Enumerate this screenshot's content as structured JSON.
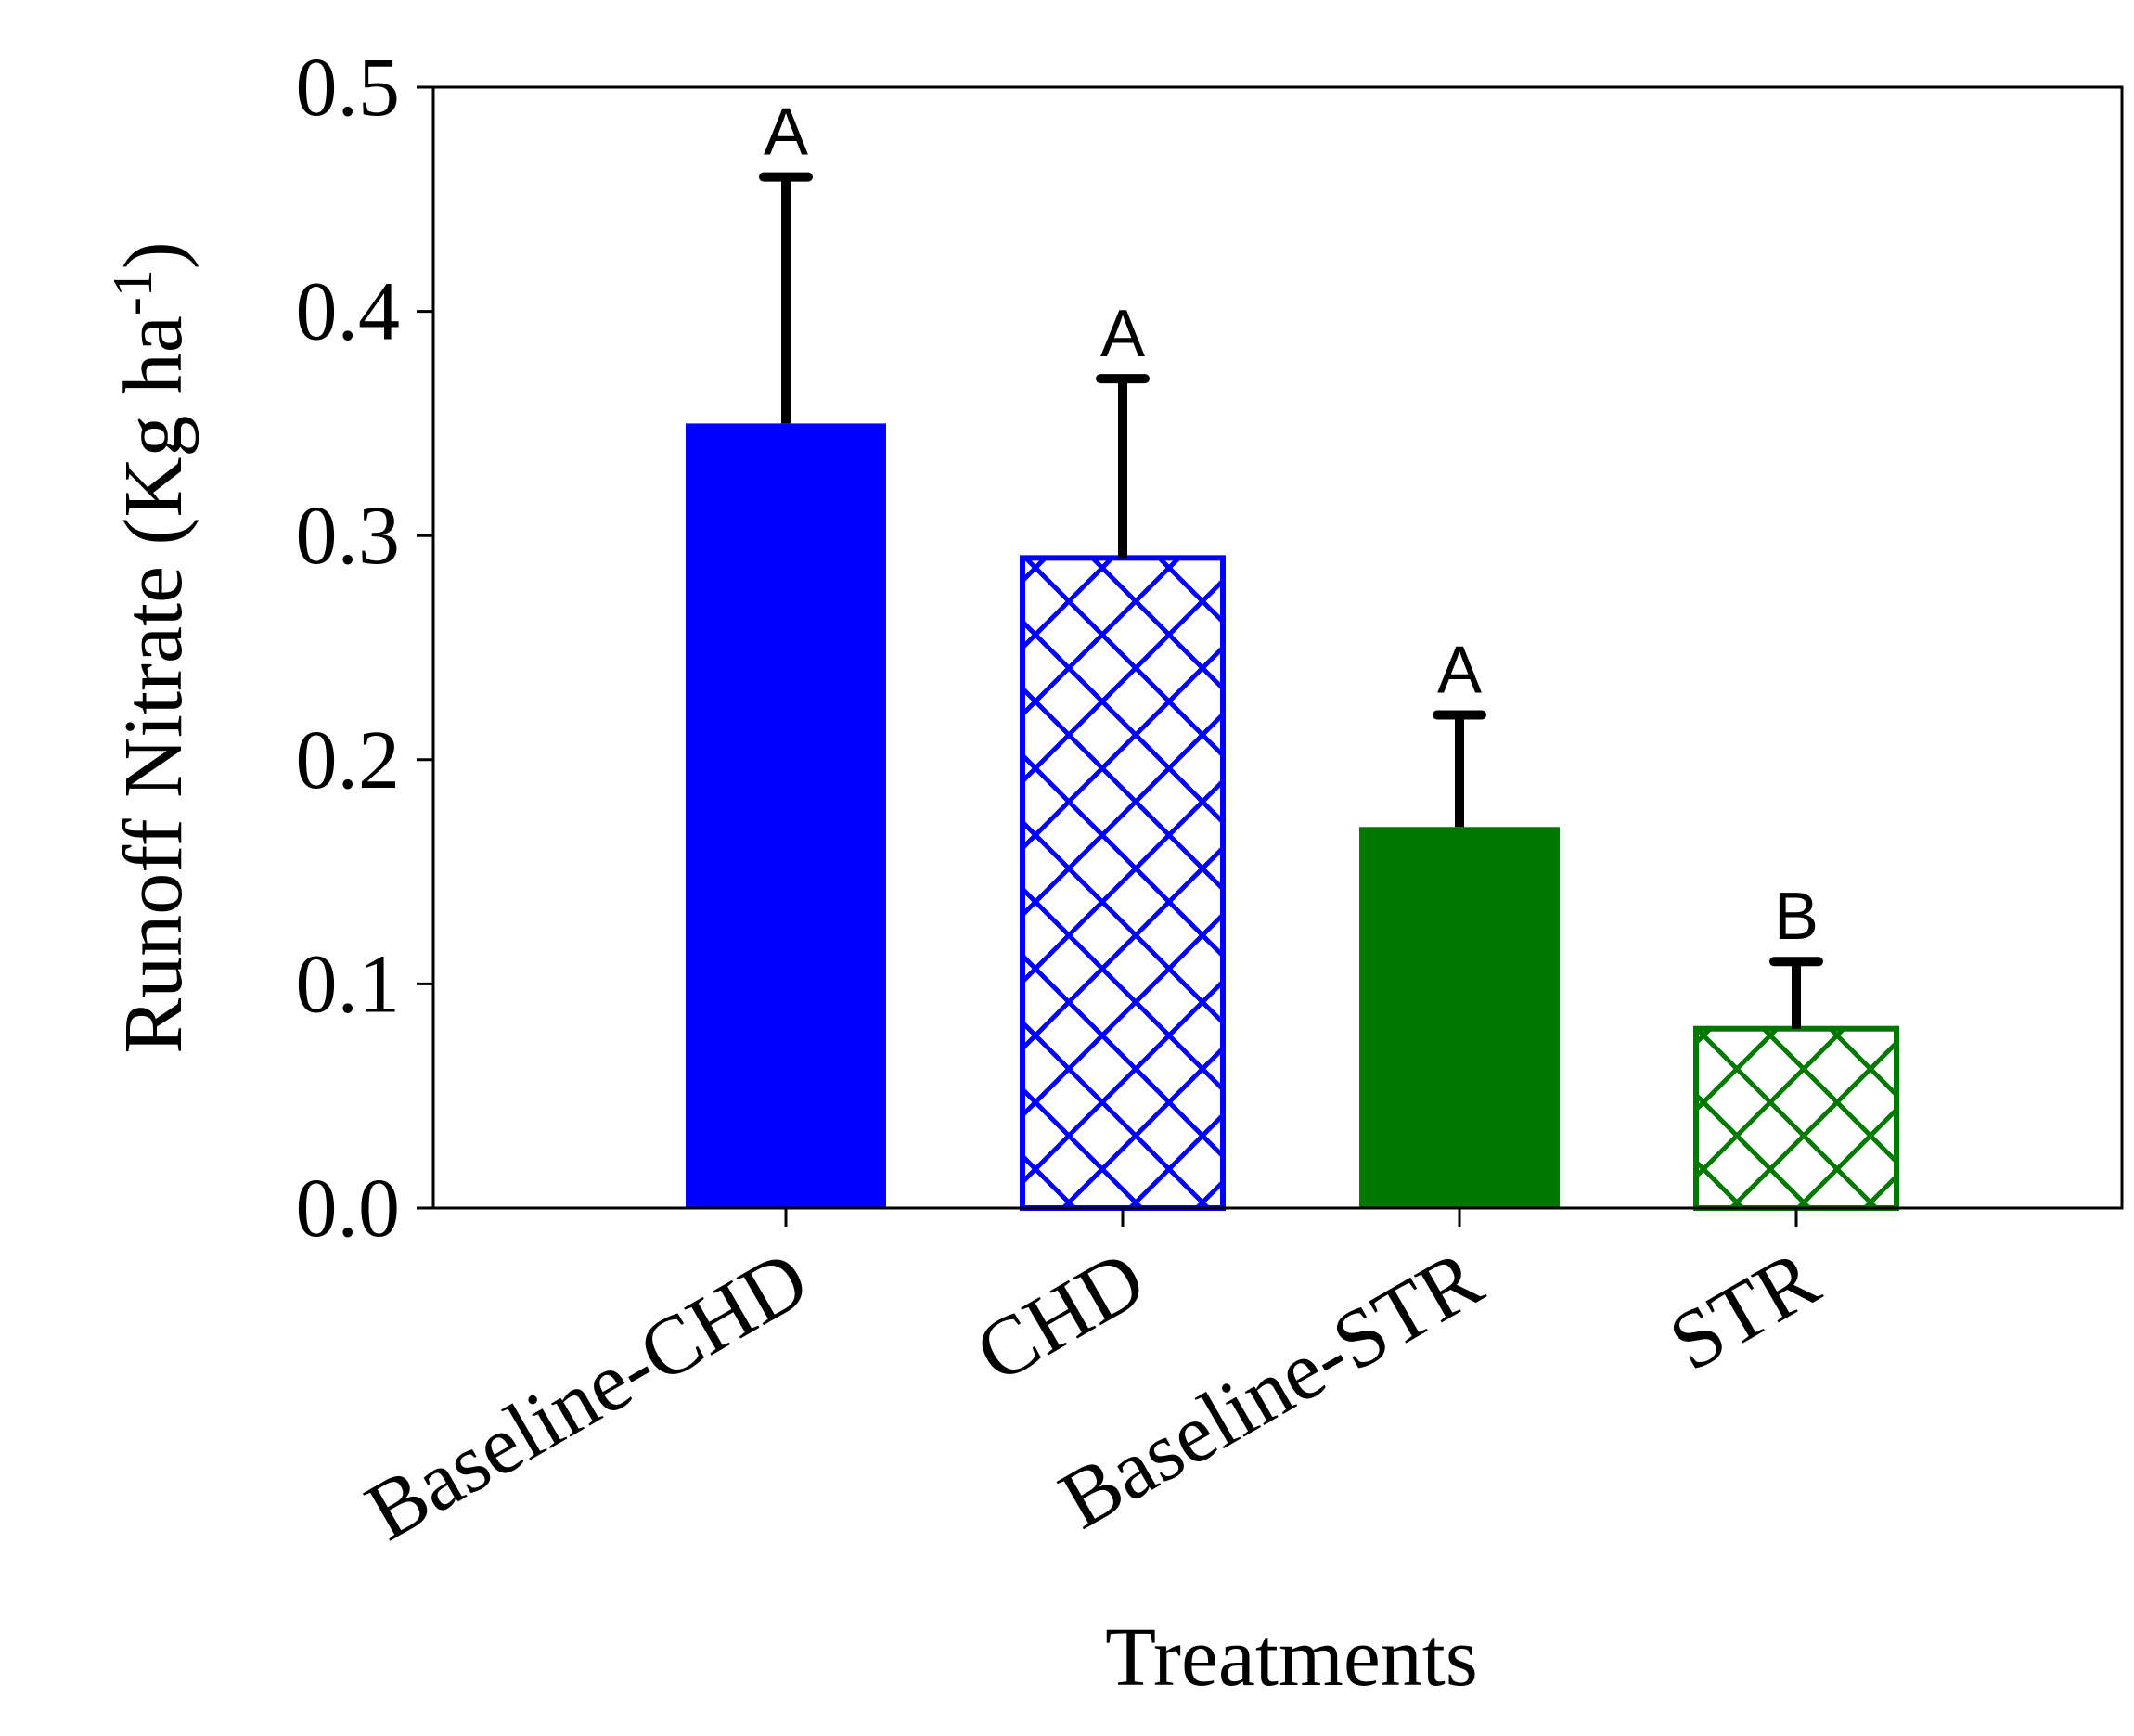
{
  "chart_data": {
    "type": "bar",
    "title": "",
    "xlabel": "Treatments",
    "ylabel_main": "Runoff Nitrate (Kg ha",
    "ylabel_sup": "-1",
    "ylabel_close": ")",
    "ylim": [
      0,
      0.5
    ],
    "yticks": [
      {
        "value": 0.0,
        "label": "0.0"
      },
      {
        "value": 0.1,
        "label": "0.1"
      },
      {
        "value": 0.2,
        "label": "0.2"
      },
      {
        "value": 0.3,
        "label": "0.3"
      },
      {
        "value": 0.4,
        "label": "0.4"
      },
      {
        "value": 0.5,
        "label": "0.5"
      }
    ],
    "categories": [
      "Baseline-CHD",
      "CHD",
      "Baseline-STR",
      "STR"
    ],
    "values": [
      0.35,
      0.29,
      0.17,
      0.08
    ],
    "error_upper": [
      0.46,
      0.37,
      0.22,
      0.11
    ],
    "significance": [
      "A",
      "A",
      "A",
      "B"
    ],
    "fills": [
      "solid",
      "crosshatch",
      "solid",
      "crosshatch"
    ],
    "colors": [
      "#0000ff",
      "#0000ff",
      "#007800",
      "#007800"
    ]
  }
}
